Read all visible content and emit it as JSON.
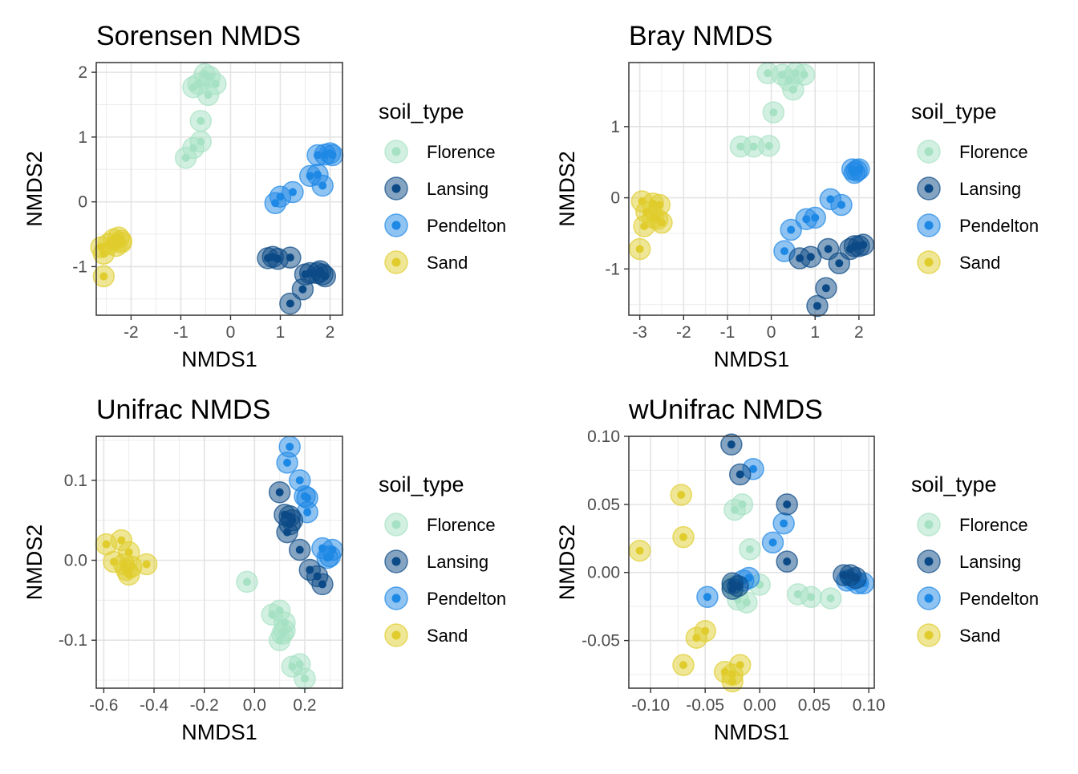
{
  "colors": {
    "Florence": "#a6e1c3",
    "Lansing": "#0b4a86",
    "Pendelton": "#1e88e5",
    "Sand": "#e0cd2d"
  },
  "legend": {
    "title": "soil_type",
    "entries": [
      "Florence",
      "Lansing",
      "Pendelton",
      "Sand"
    ]
  },
  "chart_data": [
    {
      "type": "scatter",
      "title": "Sorensen NMDS",
      "xlabel": "NMDS1",
      "ylabel": "NMDS2",
      "xlim": [
        -2.7,
        2.25
      ],
      "ylim": [
        -1.75,
        2.15
      ],
      "xticks": [
        -2,
        -1,
        0,
        1,
        2
      ],
      "xtick_labels": [
        "-2",
        "-1",
        "0",
        "1",
        "2"
      ],
      "yticks": [
        -1,
        0,
        1,
        2
      ],
      "ytick_labels": [
        "-1",
        "0",
        "1",
        "2"
      ],
      "grid": true,
      "legend_position": "right",
      "series": [
        {
          "name": "Florence",
          "points": [
            [
              -0.75,
              1.77
            ],
            [
              -0.65,
              1.82
            ],
            [
              -0.52,
              1.97
            ],
            [
              -0.42,
              1.93
            ],
            [
              -0.3,
              1.82
            ],
            [
              -0.45,
              1.65
            ],
            [
              -0.6,
              1.25
            ],
            [
              -0.6,
              0.93
            ],
            [
              -0.75,
              0.83
            ],
            [
              -0.9,
              0.68
            ]
          ]
        },
        {
          "name": "Lansing",
          "points": [
            [
              0.75,
              -0.87
            ],
            [
              0.85,
              -0.85
            ],
            [
              0.95,
              -0.88
            ],
            [
              1.2,
              -0.86
            ],
            [
              1.5,
              -1.12
            ],
            [
              1.6,
              -1.1
            ],
            [
              1.8,
              -1.07
            ],
            [
              1.85,
              -1.12
            ],
            [
              1.9,
              -1.15
            ],
            [
              1.75,
              -1.1
            ],
            [
              1.45,
              -1.35
            ],
            [
              1.2,
              -1.57
            ]
          ]
        },
        {
          "name": "Pendelton",
          "points": [
            [
              0.9,
              -0.02
            ],
            [
              1.0,
              0.08
            ],
            [
              1.25,
              0.15
            ],
            [
              1.6,
              0.4
            ],
            [
              1.75,
              0.42
            ],
            [
              1.85,
              0.25
            ],
            [
              1.75,
              0.72
            ],
            [
              1.9,
              0.73
            ],
            [
              2.0,
              0.75
            ],
            [
              2.05,
              0.72
            ]
          ]
        },
        {
          "name": "Sand",
          "points": [
            [
              -2.6,
              -0.7
            ],
            [
              -2.55,
              -0.8
            ],
            [
              -2.45,
              -0.65
            ],
            [
              -2.35,
              -0.58
            ],
            [
              -2.25,
              -0.55
            ],
            [
              -2.2,
              -0.6
            ],
            [
              -2.3,
              -0.68
            ],
            [
              -2.2,
              -0.63
            ],
            [
              -2.55,
              -1.15
            ]
          ]
        }
      ]
    },
    {
      "type": "scatter",
      "title": "Bray NMDS",
      "xlabel": "NMDS1",
      "ylabel": "NMDS2",
      "xlim": [
        -3.25,
        2.35
      ],
      "ylim": [
        -1.65,
        1.9
      ],
      "xticks": [
        -3,
        -2,
        -1,
        0,
        1,
        2
      ],
      "xtick_labels": [
        "-3",
        "-2",
        "-1",
        "0",
        "1",
        "2"
      ],
      "yticks": [
        -1,
        0,
        1
      ],
      "ytick_labels": [
        "-1",
        "0",
        "1"
      ],
      "grid": true,
      "legend_position": "right",
      "series": [
        {
          "name": "Florence",
          "points": [
            [
              -0.08,
              1.75
            ],
            [
              0.25,
              1.73
            ],
            [
              0.4,
              1.65
            ],
            [
              0.55,
              1.75
            ],
            [
              0.75,
              1.73
            ],
            [
              0.5,
              1.52
            ],
            [
              0.05,
              1.2
            ],
            [
              -0.7,
              0.72
            ],
            [
              -0.4,
              0.72
            ],
            [
              -0.05,
              0.73
            ]
          ]
        },
        {
          "name": "Lansing",
          "points": [
            [
              0.65,
              -0.85
            ],
            [
              0.9,
              -0.83
            ],
            [
              1.3,
              -0.72
            ],
            [
              1.55,
              -0.92
            ],
            [
              1.8,
              -0.72
            ],
            [
              1.9,
              -0.68
            ],
            [
              2.0,
              -0.68
            ],
            [
              2.1,
              -0.66
            ],
            [
              1.25,
              -1.27
            ],
            [
              1.05,
              -1.52
            ]
          ]
        },
        {
          "name": "Pendelton",
          "points": [
            [
              0.3,
              -0.75
            ],
            [
              0.45,
              -0.45
            ],
            [
              0.8,
              -0.3
            ],
            [
              1.0,
              -0.28
            ],
            [
              1.35,
              -0.02
            ],
            [
              1.6,
              -0.1
            ],
            [
              1.9,
              0.35
            ],
            [
              1.85,
              0.4
            ],
            [
              2.0,
              0.4
            ],
            [
              1.95,
              0.38
            ]
          ]
        },
        {
          "name": "Sand",
          "points": [
            [
              -2.95,
              -0.05
            ],
            [
              -2.7,
              -0.08
            ],
            [
              -2.55,
              -0.1
            ],
            [
              -2.85,
              -0.2
            ],
            [
              -2.6,
              -0.3
            ],
            [
              -2.7,
              -0.28
            ],
            [
              -2.5,
              -0.35
            ],
            [
              -2.9,
              -0.4
            ],
            [
              -3.0,
              -0.72
            ]
          ]
        }
      ]
    },
    {
      "type": "scatter",
      "title": "Unifrac NMDS",
      "xlabel": "NMDS1",
      "ylabel": "NMDS2",
      "xlim": [
        -0.63,
        0.35
      ],
      "ylim": [
        -0.16,
        0.155
      ],
      "xticks": [
        -0.6,
        -0.4,
        -0.2,
        0.0,
        0.2
      ],
      "xtick_labels": [
        "-0.6",
        "-0.4",
        "-0.2",
        "0.0",
        "0.2"
      ],
      "yticks": [
        -0.1,
        0.0,
        0.1
      ],
      "ytick_labels": [
        "-0.1",
        "0.0",
        "0.1"
      ],
      "grid": true,
      "legend_position": "right",
      "series": [
        {
          "name": "Florence",
          "points": [
            [
              -0.03,
              -0.027
            ],
            [
              0.07,
              -0.068
            ],
            [
              0.1,
              -0.063
            ],
            [
              0.12,
              -0.078
            ],
            [
              0.11,
              -0.092
            ],
            [
              0.1,
              -0.1
            ],
            [
              0.15,
              -0.133
            ],
            [
              0.18,
              -0.13
            ],
            [
              0.2,
              -0.148
            ],
            [
              0.12,
              -0.088
            ]
          ]
        },
        {
          "name": "Lansing",
          "points": [
            [
              0.1,
              0.085
            ],
            [
              0.12,
              0.057
            ],
            [
              0.14,
              0.055
            ],
            [
              0.15,
              0.05
            ],
            [
              0.13,
              0.035
            ],
            [
              0.18,
              0.013
            ],
            [
              0.22,
              -0.012
            ],
            [
              0.25,
              -0.02
            ],
            [
              0.27,
              -0.03
            ],
            [
              0.14,
              0.045
            ]
          ]
        },
        {
          "name": "Pendelton",
          "points": [
            [
              0.14,
              0.142
            ],
            [
              0.13,
              0.122
            ],
            [
              0.18,
              0.1
            ],
            [
              0.2,
              0.08
            ],
            [
              0.21,
              0.078
            ],
            [
              0.21,
              0.06
            ],
            [
              0.27,
              0.015
            ],
            [
              0.31,
              0.013
            ],
            [
              0.3,
              0.005
            ],
            [
              0.29,
              0.003
            ]
          ]
        },
        {
          "name": "Sand",
          "points": [
            [
              -0.59,
              0.02
            ],
            [
              -0.53,
              0.025
            ],
            [
              -0.5,
              0.01
            ],
            [
              -0.56,
              -0.002
            ],
            [
              -0.52,
              -0.005
            ],
            [
              -0.49,
              -0.008
            ],
            [
              -0.43,
              -0.005
            ],
            [
              -0.51,
              -0.012
            ],
            [
              -0.5,
              -0.018
            ]
          ]
        }
      ]
    },
    {
      "type": "scatter",
      "title": "wUnifrac NMDS",
      "xlabel": "NMDS1",
      "ylabel": "NMDS2",
      "xlim": [
        -0.12,
        0.105
      ],
      "ylim": [
        -0.085,
        0.1
      ],
      "xticks": [
        -0.1,
        -0.05,
        0.0,
        0.05,
        0.1
      ],
      "xtick_labels": [
        "-0.10",
        "-0.05",
        "0.00",
        "0.05",
        "0.10"
      ],
      "yticks": [
        -0.05,
        0.0,
        0.05,
        0.1
      ],
      "ytick_labels": [
        "-0.05",
        "0.00",
        "0.05",
        "0.10"
      ],
      "grid": true,
      "legend_position": "right",
      "series": [
        {
          "name": "Florence",
          "points": [
            [
              -0.023,
              0.046
            ],
            [
              -0.016,
              0.05
            ],
            [
              -0.009,
              0.017
            ],
            [
              0.0,
              -0.009
            ],
            [
              -0.02,
              -0.02
            ],
            [
              -0.012,
              -0.022
            ],
            [
              0.035,
              -0.016
            ],
            [
              0.047,
              -0.018
            ],
            [
              0.065,
              -0.019
            ],
            [
              -0.025,
              -0.01
            ]
          ]
        },
        {
          "name": "Lansing",
          "points": [
            [
              -0.026,
              0.094
            ],
            [
              -0.018,
              0.072
            ],
            [
              0.025,
              0.05
            ],
            [
              0.025,
              0.008
            ],
            [
              -0.025,
              -0.008
            ],
            [
              -0.02,
              -0.01
            ],
            [
              0.077,
              -0.002
            ],
            [
              0.083,
              -0.002
            ],
            [
              0.088,
              -0.004
            ],
            [
              -0.025,
              -0.012
            ]
          ]
        },
        {
          "name": "Pendelton",
          "points": [
            [
              -0.006,
              0.076
            ],
            [
              0.022,
              0.036
            ],
            [
              0.012,
              0.022
            ],
            [
              -0.01,
              -0.004
            ],
            [
              -0.015,
              -0.006
            ],
            [
              -0.048,
              -0.018
            ],
            [
              0.08,
              -0.006
            ],
            [
              0.09,
              -0.008
            ],
            [
              0.095,
              -0.008
            ],
            [
              0.085,
              -0.005
            ]
          ]
        },
        {
          "name": "Sand",
          "points": [
            [
              -0.11,
              0.016
            ],
            [
              -0.072,
              0.057
            ],
            [
              -0.07,
              0.026
            ],
            [
              -0.05,
              -0.043
            ],
            [
              -0.058,
              -0.048
            ],
            [
              -0.07,
              -0.068
            ],
            [
              -0.032,
              -0.073
            ],
            [
              -0.025,
              -0.075
            ],
            [
              -0.018,
              -0.068
            ],
            [
              -0.025,
              -0.08
            ]
          ]
        }
      ]
    }
  ]
}
